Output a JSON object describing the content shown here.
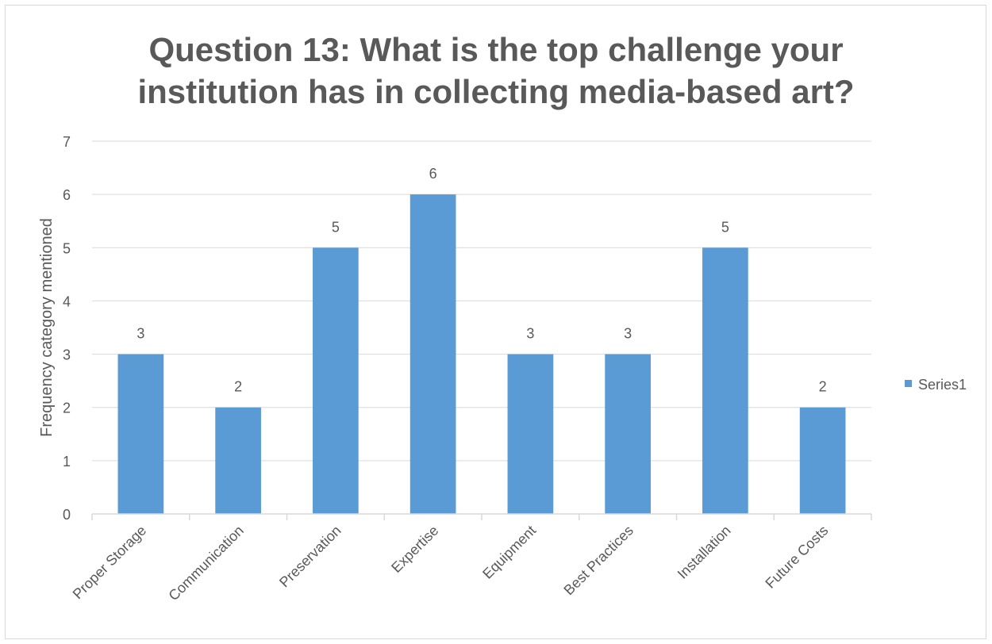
{
  "chart_data": {
    "type": "bar",
    "title": "Question 13: What is the top challenge your institution has in collecting media-based art?",
    "title_lines": [
      "Question 13: What is the top challenge your",
      "institution has in collecting media-based art?"
    ],
    "categories": [
      "Proper Storage",
      "Communication",
      "Preservation",
      "Expertise",
      "Equipment",
      "Best Practices",
      "Installation",
      "Future Costs"
    ],
    "series": [
      {
        "name": "Series1",
        "values": [
          3,
          2,
          5,
          6,
          3,
          3,
          5,
          2
        ],
        "color": "#5b9bd5"
      }
    ],
    "xlabel": "",
    "ylabel": "Frequency category mentioned",
    "ylim": [
      0,
      7
    ],
    "yticks": [
      0,
      1,
      2,
      3,
      4,
      5,
      6,
      7
    ],
    "grid": true,
    "legend_position": "right",
    "data_labels": true,
    "gridline_color": "#d9d9d9",
    "text_color": "#595959"
  }
}
